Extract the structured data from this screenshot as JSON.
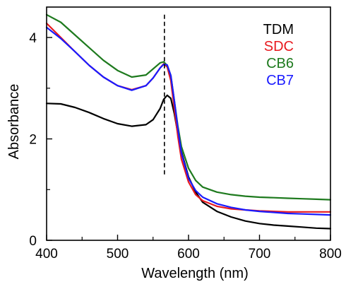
{
  "chart_data": {
    "type": "line",
    "xlabel": "Wavelength (nm)",
    "ylabel": "Absorbance",
    "xlim": [
      400,
      800
    ],
    "ylim": [
      0,
      4.6
    ],
    "x_ticks": [
      400,
      500,
      600,
      700,
      800
    ],
    "x_tick_labels": [
      "400",
      "500",
      "600",
      "700",
      "800"
    ],
    "y_ticks": [
      0,
      2,
      4
    ],
    "y_tick_labels": [
      "0",
      "2",
      "4"
    ],
    "grid": false,
    "legend_position": "top-right",
    "reference_line": {
      "x": 566,
      "y_range": [
        1.25,
        4.45
      ],
      "style": "dashed"
    },
    "series": [
      {
        "name": "TDM",
        "color": "#000000",
        "x": [
          400,
          420,
          440,
          460,
          480,
          500,
          520,
          540,
          550,
          560,
          565,
          570,
          575,
          580,
          585,
          590,
          600,
          610,
          620,
          640,
          660,
          680,
          700,
          720,
          740,
          760,
          780,
          800
        ],
        "y": [
          2.7,
          2.69,
          2.62,
          2.52,
          2.4,
          2.3,
          2.25,
          2.28,
          2.38,
          2.6,
          2.78,
          2.86,
          2.8,
          2.5,
          2.1,
          1.75,
          1.25,
          0.95,
          0.75,
          0.57,
          0.46,
          0.38,
          0.33,
          0.3,
          0.28,
          0.26,
          0.24,
          0.23
        ]
      },
      {
        "name": "SDC",
        "color": "#e8191e",
        "x": [
          400,
          420,
          440,
          460,
          480,
          500,
          520,
          540,
          550,
          560,
          565,
          570,
          575,
          580,
          585,
          590,
          600,
          610,
          620,
          640,
          660,
          680,
          700,
          720,
          740,
          760,
          780,
          800
        ],
        "y": [
          4.28,
          4.0,
          3.72,
          3.45,
          3.22,
          3.05,
          2.97,
          3.05,
          3.2,
          3.4,
          3.48,
          3.42,
          3.15,
          2.6,
          2.05,
          1.6,
          1.15,
          0.9,
          0.78,
          0.67,
          0.62,
          0.6,
          0.58,
          0.57,
          0.56,
          0.56,
          0.56,
          0.56
        ]
      },
      {
        "name": "CB6",
        "color": "#1e7a1e",
        "x": [
          400,
          420,
          440,
          460,
          480,
          500,
          520,
          540,
          550,
          560,
          565,
          570,
          575,
          580,
          585,
          590,
          600,
          610,
          620,
          640,
          660,
          680,
          700,
          720,
          740,
          760,
          780,
          800
        ],
        "y": [
          4.45,
          4.3,
          4.05,
          3.8,
          3.55,
          3.35,
          3.22,
          3.26,
          3.38,
          3.5,
          3.52,
          3.45,
          3.25,
          2.75,
          2.25,
          1.85,
          1.42,
          1.18,
          1.05,
          0.95,
          0.9,
          0.87,
          0.85,
          0.84,
          0.83,
          0.82,
          0.81,
          0.8
        ]
      },
      {
        "name": "CB7",
        "color": "#1a1aff",
        "x": [
          400,
          420,
          440,
          460,
          480,
          500,
          520,
          540,
          550,
          560,
          565,
          570,
          575,
          580,
          585,
          590,
          600,
          610,
          620,
          640,
          660,
          680,
          700,
          720,
          740,
          760,
          780,
          800
        ],
        "y": [
          4.2,
          3.98,
          3.72,
          3.45,
          3.22,
          3.05,
          2.96,
          3.05,
          3.2,
          3.4,
          3.47,
          3.46,
          3.25,
          2.75,
          2.2,
          1.72,
          1.22,
          0.98,
          0.85,
          0.72,
          0.65,
          0.6,
          0.57,
          0.55,
          0.53,
          0.52,
          0.51,
          0.5
        ]
      }
    ]
  }
}
